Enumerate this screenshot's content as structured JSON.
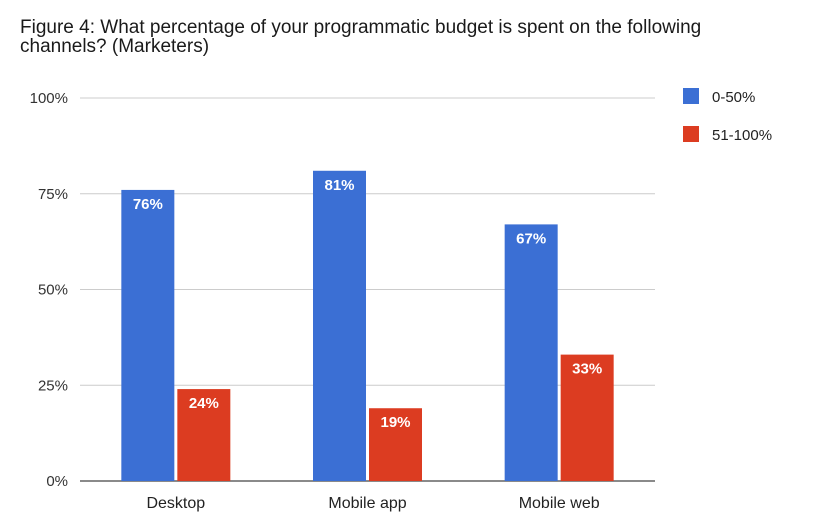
{
  "chart_data": {
    "type": "bar",
    "title": "Figure 4: What percentage of your programmatic budget is spent on the following channels? (Marketers)",
    "categories": [
      "Desktop",
      "Mobile app",
      "Mobile web"
    ],
    "series": [
      {
        "name": "0-50%",
        "color": "#3b6fd4",
        "values": [
          76,
          81,
          67
        ],
        "labels": [
          "76%",
          "81%",
          "67%"
        ]
      },
      {
        "name": "51-100%",
        "color": "#dc3c21",
        "values": [
          24,
          19,
          33
        ],
        "labels": [
          "24%",
          "19%",
          "33%"
        ]
      }
    ],
    "ylim": [
      0,
      100
    ],
    "yticks": [
      0,
      25,
      50,
      75,
      100
    ],
    "ytick_labels": [
      "0%",
      "25%",
      "50%",
      "75%",
      "100%"
    ],
    "grid": true,
    "legend": "right"
  }
}
